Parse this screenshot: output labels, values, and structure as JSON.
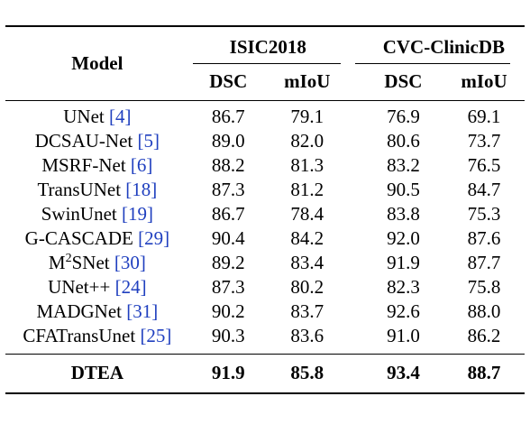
{
  "table": {
    "header": {
      "model": "Model",
      "groups": [
        {
          "name": "ISIC2018",
          "metrics": [
            "DSC",
            "mIoU"
          ]
        },
        {
          "name": "CVC-ClinicDB",
          "metrics": [
            "DSC",
            "mIoU"
          ]
        }
      ]
    },
    "rows": [
      {
        "model": "UNet",
        "cite": "[4]",
        "values": [
          "86.7",
          "79.1",
          "76.9",
          "69.1"
        ]
      },
      {
        "model": "DCSAU-Net",
        "cite": "[5]",
        "values": [
          "89.0",
          "82.0",
          "80.6",
          "73.7"
        ]
      },
      {
        "model": "MSRF-Net",
        "cite": "[6]",
        "values": [
          "88.2",
          "81.3",
          "83.2",
          "76.5"
        ]
      },
      {
        "model": "TransUNet",
        "cite": "[18]",
        "values": [
          "87.3",
          "81.2",
          "90.5",
          "84.7"
        ]
      },
      {
        "model": "SwinUnet",
        "cite": "[19]",
        "values": [
          "86.7",
          "78.4",
          "83.8",
          "75.3"
        ]
      },
      {
        "model": "G-CASCADE",
        "cite": "[29]",
        "values": [
          "90.4",
          "84.2",
          "92.0",
          "87.6"
        ]
      },
      {
        "model": "M",
        "model_sup": "2",
        "model_suffix": "SNet",
        "cite": "[30]",
        "values": [
          "89.2",
          "83.4",
          "91.9",
          "87.7"
        ]
      },
      {
        "model": "UNet++",
        "cite": "[24]",
        "values": [
          "87.3",
          "80.2",
          "82.3",
          "75.8"
        ]
      },
      {
        "model": "MADGNet",
        "cite": "[31]",
        "values": [
          "90.2",
          "83.7",
          "92.6",
          "88.0"
        ]
      },
      {
        "model": "CFATransUnet",
        "cite": "[25]",
        "values": [
          "90.3",
          "83.6",
          "91.0",
          "86.2"
        ]
      }
    ],
    "final": {
      "model": "DTEA",
      "values": [
        "91.9",
        "85.8",
        "93.4",
        "88.7"
      ]
    }
  }
}
